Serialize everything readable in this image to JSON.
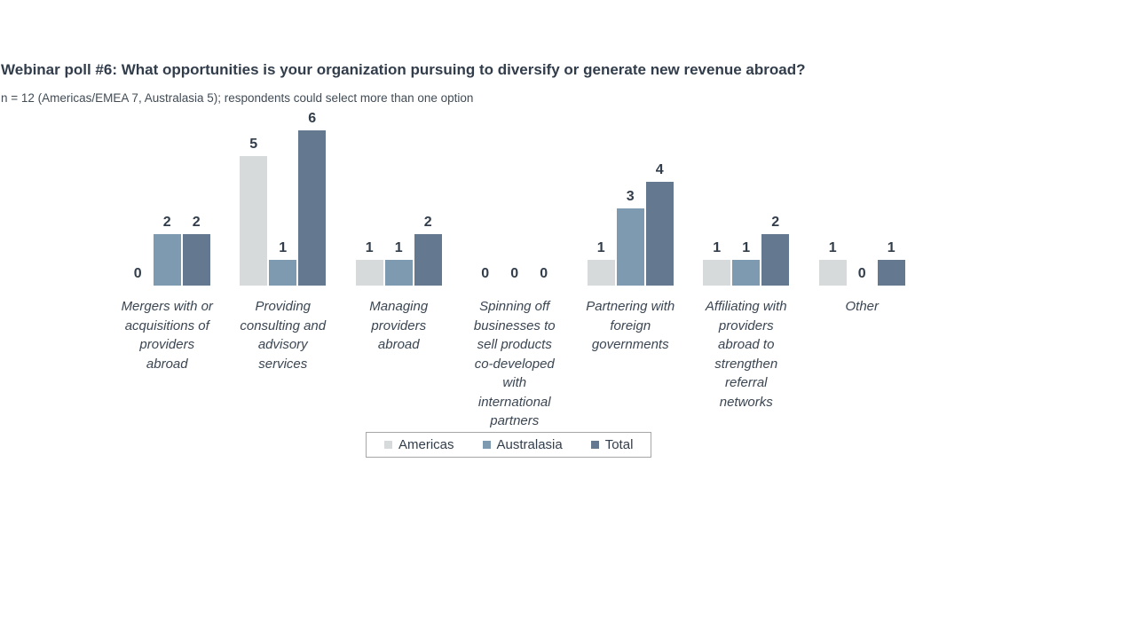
{
  "chart_data": {
    "type": "bar",
    "title": "Webinar poll #6: What opportunities is your organization pursuing to diversify or generate new revenue abroad?",
    "subtitle": "n = 12 (Americas/EMEA 7, Australasia 5); respondents could select more than one option",
    "categories": [
      "Mergers with or acquisitions of providers abroad",
      "Providing consulting and advisory services",
      "Managing providers abroad",
      "Spinning off businesses to sell products co-developed with international partners",
      "Partnering with foreign governments",
      "Affiliating with providers abroad to strengthen referral networks",
      "Other"
    ],
    "series": [
      {
        "name": "Americas",
        "color": "#d6dadb",
        "values": [
          0,
          5,
          1,
          0,
          1,
          1,
          1
        ]
      },
      {
        "name": "Australasia",
        "color": "#7d9ab1",
        "values": [
          2,
          1,
          1,
          0,
          3,
          1,
          0
        ]
      },
      {
        "name": "Total",
        "color": "#64798f",
        "values": [
          2,
          6,
          2,
          0,
          4,
          2,
          1
        ]
      }
    ],
    "ylim": [
      0,
      6
    ],
    "grid": false,
    "axes_visible": false,
    "value_labels": true,
    "legend_position": "bottom",
    "category_label_style": "italic",
    "text_color": "#323d4b",
    "legend_border_color": "#a6a6a6",
    "background_color": "#ffffff"
  }
}
